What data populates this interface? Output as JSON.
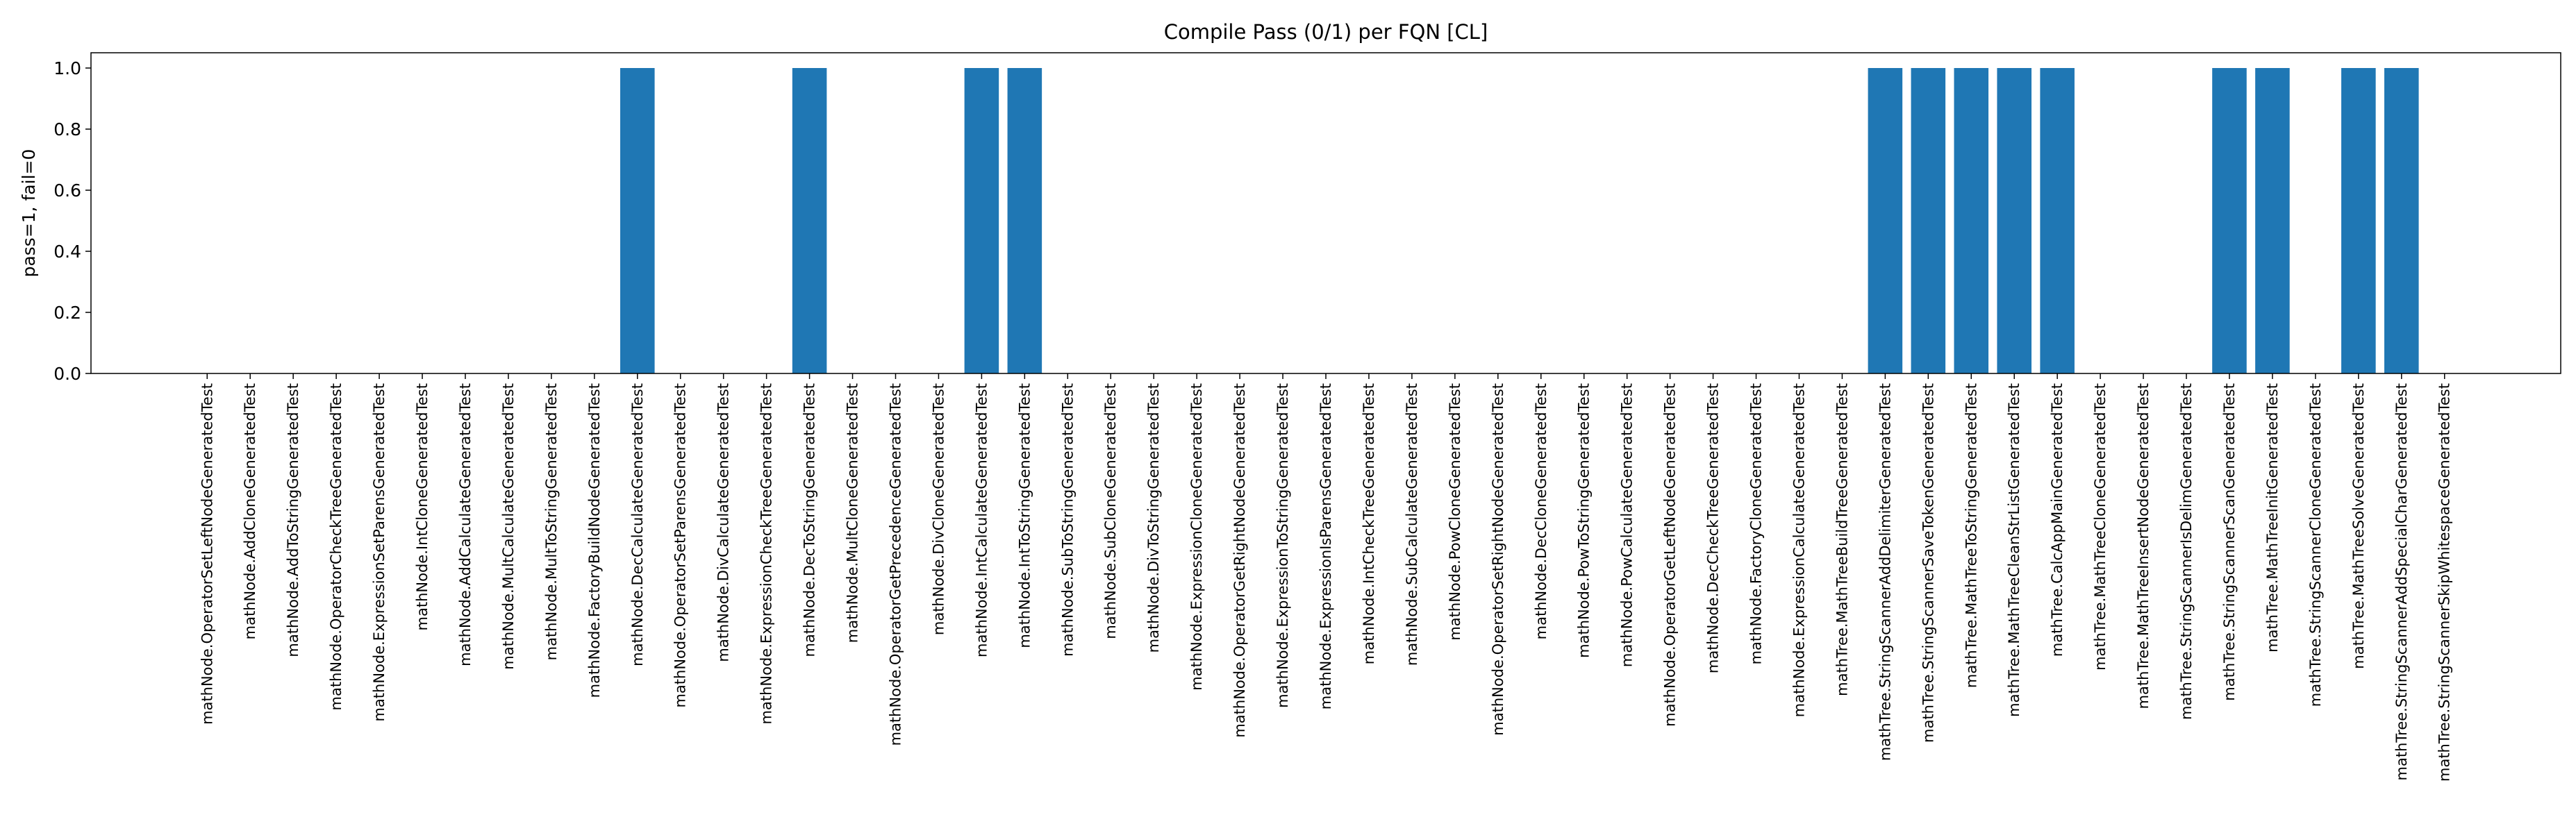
{
  "chart_data": {
    "type": "bar",
    "title": "Compile Pass (0/1) per FQN [CL]",
    "xlabel": "",
    "ylabel": "pass=1, fail=0",
    "ylim": [
      0,
      1.05
    ],
    "yticks": [
      "0.0",
      "0.2",
      "0.4",
      "0.6",
      "0.8",
      "1.0"
    ],
    "grid": false,
    "bar_color": "#1f77b4",
    "categories": [
      "mathNode.OperatorSetLeftNodeGeneratedTest",
      "mathNode.AddCloneGeneratedTest",
      "mathNode.AddToStringGeneratedTest",
      "mathNode.OperatorCheckTreeGeneratedTest",
      "mathNode.ExpressionSetParensGeneratedTest",
      "mathNode.IntCloneGeneratedTest",
      "mathNode.AddCalculateGeneratedTest",
      "mathNode.MultCalculateGeneratedTest",
      "mathNode.MultToStringGeneratedTest",
      "mathNode.FactoryBuildNodeGeneratedTest",
      "mathNode.DecCalculateGeneratedTest",
      "mathNode.OperatorSetParensGeneratedTest",
      "mathNode.DivCalculateGeneratedTest",
      "mathNode.ExpressionCheckTreeGeneratedTest",
      "mathNode.DecToStringGeneratedTest",
      "mathNode.MultCloneGeneratedTest",
      "mathNode.OperatorGetPrecedenceGeneratedTest",
      "mathNode.DivCloneGeneratedTest",
      "mathNode.IntCalculateGeneratedTest",
      "mathNode.IntToStringGeneratedTest",
      "mathNode.SubToStringGeneratedTest",
      "mathNode.SubCloneGeneratedTest",
      "mathNode.DivToStringGeneratedTest",
      "mathNode.ExpressionCloneGeneratedTest",
      "mathNode.OperatorGetRightNodeGeneratedTest",
      "mathNode.ExpressionToStringGeneratedTest",
      "mathNode.ExpressionIsParensGeneratedTest",
      "mathNode.IntCheckTreeGeneratedTest",
      "mathNode.SubCalculateGeneratedTest",
      "mathNode.PowCloneGeneratedTest",
      "mathNode.OperatorSetRightNodeGeneratedTest",
      "mathNode.DecCloneGeneratedTest",
      "mathNode.PowToStringGeneratedTest",
      "mathNode.PowCalculateGeneratedTest",
      "mathNode.OperatorGetLeftNodeGeneratedTest",
      "mathNode.DecCheckTreeGeneratedTest",
      "mathNode.FactoryCloneGeneratedTest",
      "mathNode.ExpressionCalculateGeneratedTest",
      "mathTree.MathTreeBuildTreeGeneratedTest",
      "mathTree.StringScannerAddDelimiterGeneratedTest",
      "mathTree.StringScannerSaveTokenGeneratedTest",
      "mathTree.MathTreeToStringGeneratedTest",
      "mathTree.MathTreeCleanStrListGeneratedTest",
      "mathTree.CalcAppMainGeneratedTest",
      "mathTree.MathTreeCloneGeneratedTest",
      "mathTree.MathTreeInsertNodeGeneratedTest",
      "mathTree.StringScannerIsDelimGeneratedTest",
      "mathTree.StringScannerScanGeneratedTest",
      "mathTree.MathTreeInitGeneratedTest",
      "mathTree.StringScannerCloneGeneratedTest",
      "mathTree.MathTreeSolveGeneratedTest",
      "mathTree.StringScannerAddSpecialCharGeneratedTest",
      "mathTree.StringScannerSkipWhitespaceGeneratedTest"
    ],
    "values": [
      0,
      0,
      0,
      0,
      0,
      0,
      0,
      0,
      0,
      0,
      1,
      0,
      0,
      0,
      1,
      0,
      0,
      0,
      1,
      1,
      0,
      0,
      0,
      0,
      0,
      0,
      0,
      0,
      0,
      0,
      0,
      0,
      0,
      0,
      0,
      0,
      0,
      0,
      0,
      1,
      1,
      1,
      1,
      1,
      0,
      0,
      0,
      1,
      1,
      0,
      1,
      1,
      0
    ]
  }
}
